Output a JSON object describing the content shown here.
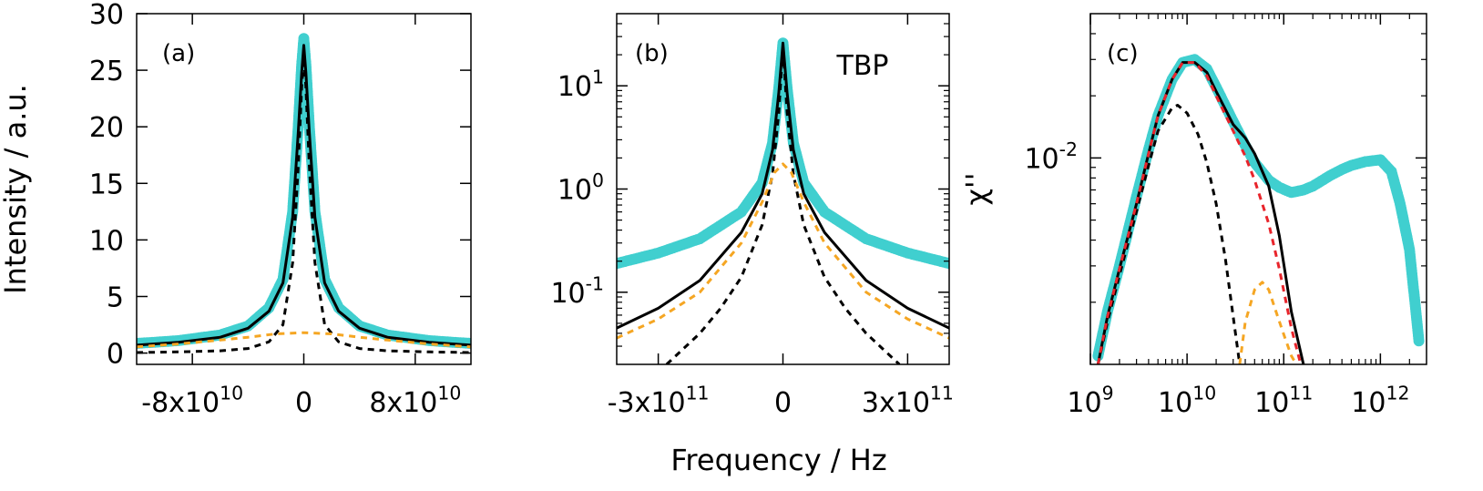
{
  "figure": {
    "xlabel": "Frequency / Hz",
    "colors": {
      "data": "#40cfcf",
      "total": "#000000",
      "comp_black": "#000000",
      "comp_orange": "#f5a623",
      "comp_red": "#e8242b"
    }
  },
  "chart_data": [
    {
      "panel": "(a)",
      "type": "line",
      "ylabel": "Intensity / a.u.",
      "xlim": [
        -120000000000.0,
        120000000000.0
      ],
      "ylim": [
        -1,
        30
      ],
      "yscale": "linear",
      "xticks": [
        {
          "v": -80000000000.0,
          "label": "-8x10",
          "exp": "10"
        },
        {
          "v": 0,
          "label": "0",
          "exp": ""
        },
        {
          "v": 80000000000.0,
          "label": "8x10",
          "exp": "10"
        }
      ],
      "yticks": [
        {
          "v": 0,
          "label": "0"
        },
        {
          "v": 5,
          "label": "5"
        },
        {
          "v": 10,
          "label": "10"
        },
        {
          "v": 15,
          "label": "15"
        },
        {
          "v": 20,
          "label": "20"
        },
        {
          "v": 25,
          "label": "25"
        },
        {
          "v": 30,
          "label": "30"
        }
      ],
      "series": [
        {
          "role": "data",
          "style": "dots",
          "x": [
            -120000000000.0,
            -90000000000.0,
            -60000000000.0,
            -40000000000.0,
            -25000000000.0,
            -15000000000.0,
            -8000000000.0,
            -4000000000.0,
            -1500000000.0,
            0,
            1500000000.0,
            4000000000.0,
            8000000000.0,
            15000000000.0,
            25000000000.0,
            40000000000.0,
            60000000000.0,
            90000000000.0,
            120000000000.0
          ],
          "y": [
            0.85,
            1.1,
            1.6,
            2.4,
            4.0,
            6.5,
            12.5,
            20.0,
            25.5,
            27.8,
            25.5,
            20.0,
            12.5,
            6.5,
            4.0,
            2.4,
            1.6,
            1.1,
            0.85
          ]
        },
        {
          "role": "total",
          "style": "solid",
          "x": [
            -120000000000.0,
            -90000000000.0,
            -60000000000.0,
            -40000000000.0,
            -25000000000.0,
            -15000000000.0,
            -8000000000.0,
            -4000000000.0,
            -1500000000.0,
            0,
            1500000000.0,
            4000000000.0,
            8000000000.0,
            15000000000.0,
            25000000000.0,
            40000000000.0,
            60000000000.0,
            90000000000.0,
            120000000000.0
          ],
          "y": [
            0.7,
            0.95,
            1.4,
            2.2,
            3.7,
            6.2,
            12.0,
            19.5,
            24.8,
            27.2,
            24.8,
            19.5,
            12.0,
            6.2,
            3.7,
            2.2,
            1.4,
            0.95,
            0.7
          ]
        },
        {
          "role": "component",
          "style": "dashed-black",
          "x": [
            -120000000000.0,
            -90000000000.0,
            -60000000000.0,
            -40000000000.0,
            -25000000000.0,
            -15000000000.0,
            -8000000000.0,
            -4000000000.0,
            -1500000000.0,
            0,
            1500000000.0,
            4000000000.0,
            8000000000.0,
            15000000000.0,
            25000000000.0,
            40000000000.0,
            60000000000.0,
            90000000000.0,
            120000000000.0
          ],
          "y": [
            0.05,
            0.1,
            0.2,
            0.4,
            1.0,
            2.5,
            8.0,
            16.5,
            23.5,
            26.2,
            23.5,
            16.5,
            8.0,
            2.5,
            1.0,
            0.4,
            0.2,
            0.1,
            0.05
          ]
        },
        {
          "role": "component",
          "style": "dashed-orange",
          "x": [
            -120000000000.0,
            -90000000000.0,
            -60000000000.0,
            -40000000000.0,
            -20000000000.0,
            0,
            20000000000.0,
            40000000000.0,
            60000000000.0,
            90000000000.0,
            120000000000.0
          ],
          "y": [
            0.55,
            0.8,
            1.15,
            1.4,
            1.7,
            1.8,
            1.7,
            1.4,
            1.15,
            0.8,
            0.55
          ]
        }
      ]
    },
    {
      "panel": "(b)",
      "type": "line",
      "annotation": "TBP",
      "xlim": [
        -400000000000.0,
        400000000000.0
      ],
      "ylim": [
        0.02,
        50
      ],
      "yscale": "log",
      "xticks": [
        {
          "v": -300000000000.0,
          "label": "-3x10",
          "exp": "11"
        },
        {
          "v": 0,
          "label": "0",
          "exp": ""
        },
        {
          "v": 300000000000.0,
          "label": "3x10",
          "exp": "11"
        }
      ],
      "yticks": [
        {
          "v": 0.1,
          "label": "10",
          "exp": "-1"
        },
        {
          "v": 1,
          "label": "10",
          "exp": "0"
        },
        {
          "v": 10,
          "label": "10",
          "exp": "1"
        }
      ],
      "series": [
        {
          "role": "data",
          "style": "dots",
          "x": [
            -400000000000.0,
            -300000000000.0,
            -200000000000.0,
            -100000000000.0,
            -50000000000.0,
            -25000000000.0,
            -10000000000.0,
            0,
            10000000000.0,
            25000000000.0,
            50000000000.0,
            100000000000.0,
            200000000000.0,
            300000000000.0,
            400000000000.0
          ],
          "y": [
            0.19,
            0.24,
            0.33,
            0.6,
            1.15,
            2.8,
            9.5,
            26,
            9.5,
            2.8,
            1.15,
            0.6,
            0.33,
            0.24,
            0.19
          ]
        },
        {
          "role": "total",
          "style": "solid",
          "x": [
            -400000000000.0,
            -300000000000.0,
            -200000000000.0,
            -100000000000.0,
            -50000000000.0,
            -25000000000.0,
            -10000000000.0,
            0,
            10000000000.0,
            25000000000.0,
            50000000000.0,
            100000000000.0,
            200000000000.0,
            300000000000.0,
            400000000000.0
          ],
          "y": [
            0.045,
            0.07,
            0.13,
            0.38,
            0.9,
            2.4,
            8.5,
            26,
            8.5,
            2.4,
            0.9,
            0.38,
            0.13,
            0.07,
            0.045
          ]
        },
        {
          "role": "component",
          "style": "dashed-black",
          "x": [
            -280000000000.0,
            -200000000000.0,
            -150000000000.0,
            -100000000000.0,
            -50000000000.0,
            -25000000000.0,
            -10000000000.0,
            0,
            10000000000.0,
            25000000000.0,
            50000000000.0,
            100000000000.0,
            150000000000.0,
            200000000000.0,
            280000000000.0
          ],
          "y": [
            0.02,
            0.04,
            0.07,
            0.14,
            0.45,
            1.4,
            5.5,
            24,
            5.5,
            1.4,
            0.45,
            0.14,
            0.07,
            0.04,
            0.02
          ]
        },
        {
          "role": "component",
          "style": "dashed-orange",
          "x": [
            -400000000000.0,
            -300000000000.0,
            -200000000000.0,
            -100000000000.0,
            -50000000000.0,
            -20000000000.0,
            0,
            20000000000.0,
            50000000000.0,
            100000000000.0,
            200000000000.0,
            300000000000.0,
            400000000000.0
          ],
          "y": [
            0.036,
            0.055,
            0.1,
            0.3,
            0.75,
            1.45,
            1.75,
            1.45,
            0.75,
            0.3,
            0.1,
            0.055,
            0.036
          ]
        }
      ]
    },
    {
      "panel": "(c)",
      "type": "line",
      "ylabel": "χ''",
      "xlim": [
        1000000000.0,
        3000000000000.0
      ],
      "ylim": [
        0.001,
        0.05
      ],
      "xscale": "log",
      "yscale": "log",
      "xticks": [
        {
          "v": 1000000000.0,
          "label": "10",
          "exp": "9"
        },
        {
          "v": 10000000000.0,
          "label": "10",
          "exp": "10"
        },
        {
          "v": 100000000000.0,
          "label": "10",
          "exp": "11"
        },
        {
          "v": 1000000000000.0,
          "label": "10",
          "exp": "12"
        }
      ],
      "yticks": [
        {
          "v": 0.01,
          "label": "10",
          "exp": "-2"
        }
      ],
      "series": [
        {
          "role": "data",
          "style": "dots",
          "x": [
            1200000000.0,
            1500000000.0,
            2000000000.0,
            3000000000.0,
            4000000000.0,
            5000000000.0,
            7000000000.0,
            9000000000.0,
            12000000000.0,
            16000000000.0,
            20000000000.0,
            30000000000.0,
            40000000000.0,
            50000000000.0,
            70000000000.0,
            90000000000.0,
            120000000000.0,
            160000000000.0,
            200000000000.0,
            300000000000.0,
            400000000000.0,
            500000000000.0,
            700000000000.0,
            1000000000000.0,
            1300000000000.0,
            1600000000000.0,
            2000000000000.0,
            2500000000000.0
          ],
          "y": [
            0.0011,
            0.0018,
            0.003,
            0.0065,
            0.011,
            0.016,
            0.024,
            0.029,
            0.03,
            0.027,
            0.022,
            0.015,
            0.0115,
            0.0095,
            0.0078,
            0.0072,
            0.0068,
            0.007,
            0.0073,
            0.0082,
            0.0088,
            0.0092,
            0.0096,
            0.0098,
            0.0086,
            0.006,
            0.0036,
            0.0013
          ]
        },
        {
          "role": "total",
          "style": "solid",
          "x": [
            1200000000.0,
            1500000000.0,
            2000000000.0,
            3000000000.0,
            4000000000.0,
            5000000000.0,
            7000000000.0,
            9000000000.0,
            12000000000.0,
            16000000000.0,
            20000000000.0,
            30000000000.0,
            40000000000.0,
            50000000000.0,
            70000000000.0,
            90000000000.0,
            120000000000.0,
            160000000000.0
          ],
          "y": [
            0.001,
            0.0017,
            0.0029,
            0.006,
            0.0105,
            0.016,
            0.024,
            0.029,
            0.029,
            0.026,
            0.021,
            0.0145,
            0.0125,
            0.0105,
            0.0073,
            0.0042,
            0.0018,
            0.001
          ]
        },
        {
          "role": "component",
          "style": "dashed-black",
          "x": [
            1200000000.0,
            1500000000.0,
            2000000000.0,
            3000000000.0,
            4000000000.0,
            5000000000.0,
            7000000000.0,
            8000000000.0,
            10000000000.0,
            13000000000.0,
            16000000000.0,
            20000000000.0,
            25000000000.0,
            30000000000.0,
            35000000000.0
          ],
          "y": [
            0.001,
            0.0016,
            0.0027,
            0.0055,
            0.0092,
            0.0135,
            0.0175,
            0.018,
            0.0165,
            0.013,
            0.0095,
            0.006,
            0.0032,
            0.0017,
            0.001
          ]
        },
        {
          "role": "component",
          "style": "dashed-red",
          "x": [
            1200000000.0,
            1500000000.0,
            2000000000.0,
            3000000000.0,
            4000000000.0,
            5000000000.0,
            7000000000.0,
            9000000000.0,
            12000000000.0,
            16000000000.0,
            20000000000.0,
            30000000000.0,
            40000000000.0,
            50000000000.0,
            70000000000.0,
            90000000000.0,
            120000000000.0,
            150000000000.0
          ],
          "y": [
            0.001,
            0.0017,
            0.0029,
            0.006,
            0.0105,
            0.016,
            0.024,
            0.029,
            0.029,
            0.025,
            0.02,
            0.0135,
            0.0102,
            0.0078,
            0.0048,
            0.0029,
            0.0015,
            0.001
          ]
        },
        {
          "role": "component",
          "style": "dashed-orange",
          "x": [
            35000000000.0,
            40000000000.0,
            50000000000.0,
            60000000000.0,
            70000000000.0,
            80000000000.0,
            100000000000.0,
            120000000000.0,
            135000000000.0
          ],
          "y": [
            0.001,
            0.0016,
            0.0023,
            0.0025,
            0.0023,
            0.0019,
            0.0014,
            0.0011,
            0.001
          ]
        }
      ]
    }
  ]
}
